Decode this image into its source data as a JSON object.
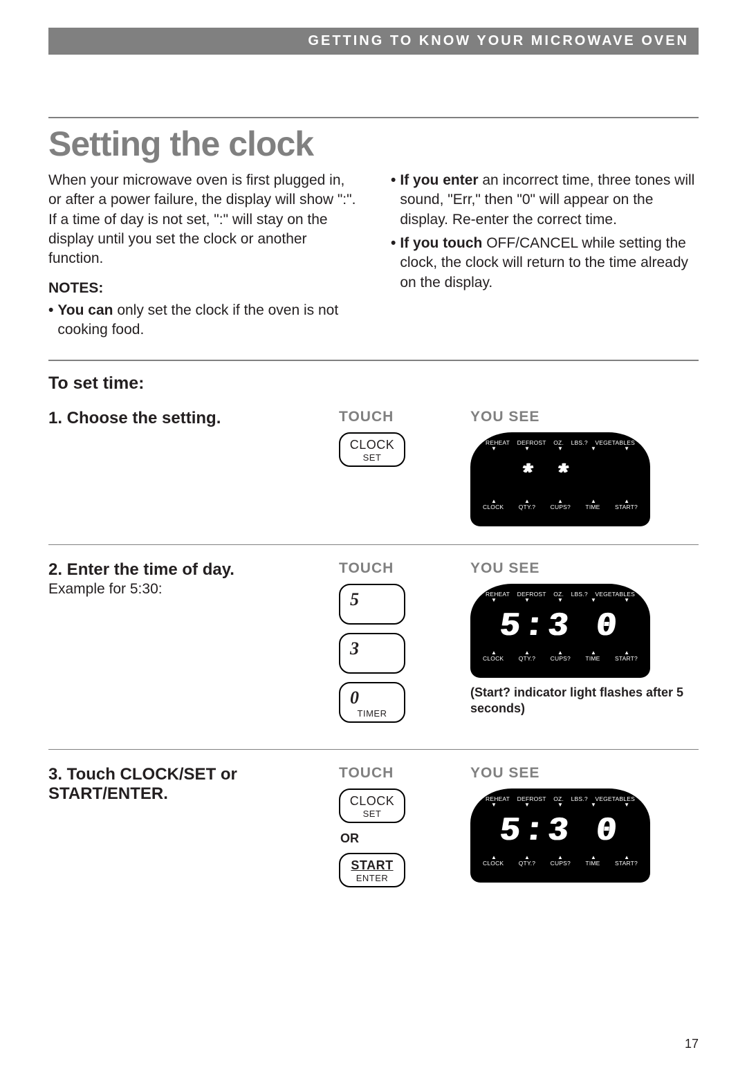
{
  "header": "GETTING TO KNOW YOUR MICROWAVE OVEN",
  "title": "Setting the clock",
  "intro_left": "When your microwave oven is first plugged in, or after a power failure, the display will show \":\". If a time of day is not set, \":\" will stay on the display until you set the clock or another function.",
  "notes_heading": "NOTES:",
  "note_l_bold": "You can",
  "note_l_rest": " only set the clock if the oven is not cooking food.",
  "note_r1_bold": "If you enter",
  "note_r1_rest": " an incorrect time, three tones will sound, \"Err,\" then \"0\" will appear on the display. Re-enter the correct time.",
  "note_r2_bold": "If you touch",
  "note_r2_rest": " OFF/CANCEL while setting the clock, the clock will return to the time already on the display.",
  "to_set_time": "To set time:",
  "step1_title": "1. Choose the setting.",
  "step2_title": "2. Enter the time of day.",
  "step2_sub": "Example for 5:30:",
  "step3_title": "3. Touch CLOCK/SET or START/ENTER.",
  "touch_label": "TOUCH",
  "you_see_label": "YOU SEE",
  "or_label": "OR",
  "btn_clock1": "CLOCK",
  "btn_clock2": "SET",
  "btn_5": "5",
  "btn_3": "3",
  "btn_0": "0",
  "btn_timer": "TIMER",
  "btn_start1": "START",
  "btn_start2": "ENTER",
  "display_top": {
    "a": "REHEAT",
    "b": "DEFROST",
    "c": "OZ.",
    "d": "LBS.?",
    "e": "VEGETABLES"
  },
  "display_bot": {
    "a": "CLOCK",
    "b": "QTY.?",
    "c": "CUPS?",
    "d": "TIME",
    "e": "START?"
  },
  "display1_text": "*  * ",
  "display2_text": "5:3 0",
  "display3_text": "5:3 0",
  "display2_caption": "(Start? indicator light flashes after 5 seconds)",
  "page_number": "17"
}
